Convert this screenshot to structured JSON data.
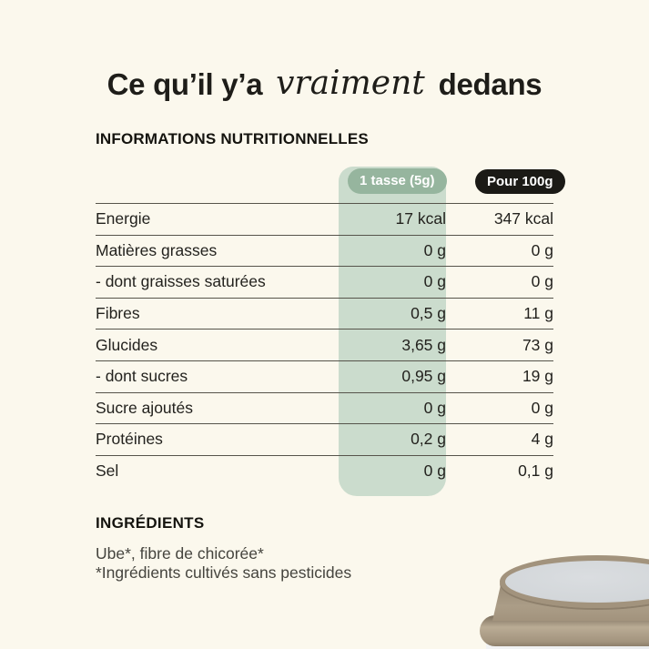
{
  "title": {
    "part1": "Ce qu’il y’a",
    "script": "vraiment",
    "part2": "dedans"
  },
  "nutrition": {
    "heading": "INFORMATIONS NUTRITIONNELLES",
    "columns": {
      "serving": "1 tasse (5g)",
      "per_100g": "Pour 100g"
    },
    "rows": [
      {
        "label": "Energie",
        "serving": "17 kcal",
        "per_100g": "347 kcal"
      },
      {
        "label": "Matières grasses",
        "serving": "0 g",
        "per_100g": "0 g"
      },
      {
        "label": "- dont graisses saturées",
        "serving": "0 g",
        "per_100g": "0 g"
      },
      {
        "label": "Fibres",
        "serving": "0,5 g",
        "per_100g": "11 g"
      },
      {
        "label": "Glucides",
        "serving": "3,65 g",
        "per_100g": "73 g"
      },
      {
        "label": "- dont sucres",
        "serving": "0,95 g",
        "per_100g": "19 g"
      },
      {
        "label": "Sucre ajoutés",
        "serving": "0 g",
        "per_100g": "0 g"
      },
      {
        "label": "Protéines",
        "serving": "0,2 g",
        "per_100g": "4 g"
      },
      {
        "label": "Sel",
        "serving": "0 g",
        "per_100g": "0,1 g"
      }
    ]
  },
  "ingredients": {
    "heading": "INGRÉDIENTS",
    "line1": "Ube*, fibre de chicorée*",
    "line2": "*Ingrédients cultivés sans pesticides"
  },
  "colors": {
    "background": "#fbf8ed",
    "band_green": "#cbdccd",
    "pill_green": "#96b59e",
    "pill_black": "#1b1a16",
    "border": "#56544b",
    "text": "#23221e",
    "tin_taupe": "#a89a85",
    "tin_label_green": "#6fa488"
  }
}
